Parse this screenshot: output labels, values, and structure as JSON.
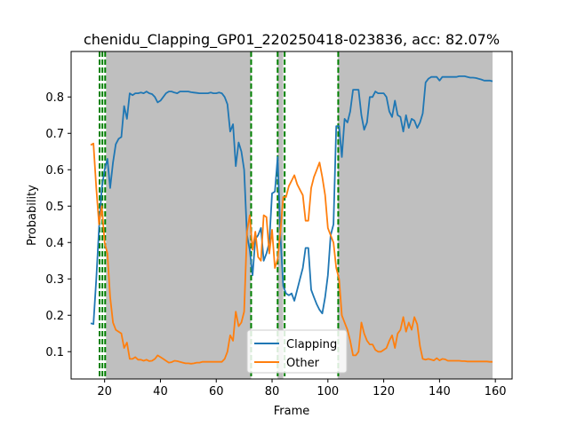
{
  "chart_data": {
    "type": "line",
    "title": "chenidu_Clapping_GP01_220250418-023836,  acc: 82.07%",
    "xlabel": "Frame",
    "ylabel": "Probability",
    "xlim": [
      8,
      166
    ],
    "ylim": [
      0.025,
      0.925
    ],
    "xticks": [
      20,
      40,
      60,
      80,
      100,
      120,
      140,
      160
    ],
    "yticks": [
      0.1,
      0.2,
      0.3,
      0.4,
      0.5,
      0.6,
      0.7,
      0.8
    ],
    "grid": false,
    "legend": "lower center",
    "shaded_regions": [
      [
        20.5,
        72.5
      ],
      [
        82,
        84
      ],
      [
        103.5,
        159
      ]
    ],
    "vertical_lines": [
      18.2,
      19.2,
      20.2,
      72.5,
      82,
      84.5,
      103.7
    ],
    "colors": {
      "shade": "#bfbfbf",
      "vline": "#008000"
    },
    "series": [
      {
        "name": "Clapping",
        "color": "#1f77b4",
        "x": [
          15,
          16,
          17,
          18,
          19,
          20,
          21,
          22,
          23,
          24,
          25,
          26,
          27,
          28,
          29,
          30,
          31,
          32,
          33,
          34,
          35,
          36,
          37,
          38,
          39,
          40,
          41,
          42,
          43,
          44,
          45,
          46,
          47,
          48,
          49,
          50,
          51,
          52,
          53,
          54,
          55,
          56,
          57,
          58,
          59,
          60,
          61,
          62,
          63,
          64,
          65,
          66,
          67,
          68,
          69,
          70,
          71,
          72,
          73,
          74,
          75,
          76,
          77,
          78,
          79,
          80,
          81,
          82,
          83,
          84,
          85,
          86,
          87,
          88,
          89,
          90,
          91,
          92,
          93,
          94,
          95,
          96,
          97,
          98,
          99,
          100,
          101,
          102,
          103,
          104,
          105,
          106,
          107,
          108,
          109,
          110,
          111,
          112,
          113,
          114,
          115,
          116,
          117,
          118,
          119,
          120,
          121,
          122,
          123,
          124,
          125,
          126,
          127,
          128,
          129,
          130,
          131,
          132,
          133,
          134,
          135,
          136,
          137,
          138,
          139,
          140,
          141,
          142,
          143,
          144,
          145,
          146,
          147,
          148,
          149,
          150,
          151,
          152,
          153,
          154,
          155,
          156,
          157,
          158,
          159
        ],
        "values": [
          0.178,
          0.176,
          0.3,
          0.44,
          0.55,
          0.6,
          0.63,
          0.55,
          0.62,
          0.67,
          0.685,
          0.69,
          0.775,
          0.74,
          0.81,
          0.805,
          0.81,
          0.81,
          0.812,
          0.81,
          0.815,
          0.81,
          0.808,
          0.8,
          0.785,
          0.79,
          0.8,
          0.81,
          0.815,
          0.815,
          0.812,
          0.81,
          0.815,
          0.815,
          0.815,
          0.815,
          0.813,
          0.812,
          0.811,
          0.81,
          0.81,
          0.81,
          0.81,
          0.812,
          0.81,
          0.81,
          0.812,
          0.81,
          0.8,
          0.78,
          0.705,
          0.725,
          0.61,
          0.675,
          0.65,
          0.6,
          0.42,
          0.38,
          0.31,
          0.41,
          0.42,
          0.44,
          0.35,
          0.37,
          0.4,
          0.535,
          0.54,
          0.635,
          0.42,
          0.28,
          0.26,
          0.255,
          0.26,
          0.24,
          0.27,
          0.3,
          0.33,
          0.385,
          0.385,
          0.27,
          0.25,
          0.23,
          0.215,
          0.205,
          0.25,
          0.31,
          0.42,
          0.45,
          0.72,
          0.72,
          0.635,
          0.74,
          0.73,
          0.76,
          0.82,
          0.82,
          0.82,
          0.75,
          0.71,
          0.73,
          0.8,
          0.8,
          0.815,
          0.81,
          0.81,
          0.81,
          0.8,
          0.76,
          0.745,
          0.79,
          0.75,
          0.745,
          0.705,
          0.75,
          0.715,
          0.74,
          0.735,
          0.715,
          0.73,
          0.755,
          0.84,
          0.85,
          0.855,
          0.855,
          0.855,
          0.845,
          0.855,
          0.855,
          0.855,
          0.855,
          0.855,
          0.855,
          0.857,
          0.857,
          0.857,
          0.855,
          0.853,
          0.853,
          0.852,
          0.85,
          0.848,
          0.845,
          0.845,
          0.845,
          0.843
        ]
      },
      {
        "name": "Other",
        "color": "#ff7f0e",
        "x": [
          15,
          16,
          17,
          18,
          19,
          20,
          21,
          22,
          23,
          24,
          25,
          26,
          27,
          28,
          29,
          30,
          31,
          32,
          33,
          34,
          35,
          36,
          37,
          38,
          39,
          40,
          41,
          42,
          43,
          44,
          45,
          46,
          47,
          48,
          49,
          50,
          51,
          52,
          53,
          54,
          55,
          56,
          57,
          58,
          59,
          60,
          61,
          62,
          63,
          64,
          65,
          66,
          67,
          68,
          69,
          70,
          71,
          72,
          73,
          74,
          75,
          76,
          77,
          78,
          79,
          80,
          81,
          82,
          83,
          84,
          85,
          86,
          87,
          88,
          89,
          90,
          91,
          92,
          93,
          94,
          95,
          96,
          97,
          98,
          99,
          100,
          101,
          102,
          103,
          104,
          105,
          106,
          107,
          108,
          109,
          110,
          111,
          112,
          113,
          114,
          115,
          116,
          117,
          118,
          119,
          120,
          121,
          122,
          123,
          124,
          125,
          126,
          127,
          128,
          129,
          130,
          131,
          132,
          133,
          134,
          135,
          136,
          137,
          138,
          139,
          140,
          141,
          142,
          143,
          144,
          145,
          146,
          147,
          148,
          149,
          150,
          151,
          152,
          153,
          154,
          155,
          156,
          157,
          158,
          159
        ],
        "values": [
          0.668,
          0.672,
          0.55,
          0.45,
          0.5,
          0.4,
          0.37,
          0.25,
          0.18,
          0.16,
          0.155,
          0.15,
          0.11,
          0.125,
          0.08,
          0.08,
          0.085,
          0.078,
          0.078,
          0.075,
          0.078,
          0.074,
          0.075,
          0.08,
          0.09,
          0.085,
          0.08,
          0.075,
          0.07,
          0.071,
          0.075,
          0.074,
          0.072,
          0.07,
          0.068,
          0.068,
          0.067,
          0.068,
          0.07,
          0.07,
          0.072,
          0.072,
          0.072,
          0.072,
          0.072,
          0.072,
          0.072,
          0.072,
          0.08,
          0.1,
          0.145,
          0.13,
          0.21,
          0.17,
          0.18,
          0.21,
          0.43,
          0.475,
          0.38,
          0.43,
          0.36,
          0.35,
          0.475,
          0.47,
          0.37,
          0.435,
          0.33,
          0.355,
          0.43,
          0.525,
          0.525,
          0.555,
          0.57,
          0.585,
          0.56,
          0.545,
          0.53,
          0.46,
          0.46,
          0.55,
          0.58,
          0.6,
          0.62,
          0.58,
          0.53,
          0.44,
          0.42,
          0.4,
          0.33,
          0.3,
          0.2,
          0.18,
          0.16,
          0.13,
          0.09,
          0.09,
          0.1,
          0.18,
          0.15,
          0.13,
          0.12,
          0.12,
          0.105,
          0.1,
          0.1,
          0.105,
          0.11,
          0.13,
          0.145,
          0.11,
          0.15,
          0.16,
          0.195,
          0.155,
          0.18,
          0.16,
          0.195,
          0.175,
          0.115,
          0.08,
          0.078,
          0.08,
          0.078,
          0.076,
          0.082,
          0.076,
          0.08,
          0.079,
          0.075,
          0.075,
          0.075,
          0.075,
          0.075,
          0.074,
          0.074,
          0.073,
          0.073,
          0.073,
          0.073,
          0.073,
          0.073,
          0.073,
          0.073,
          0.072,
          0.072
        ]
      }
    ]
  }
}
